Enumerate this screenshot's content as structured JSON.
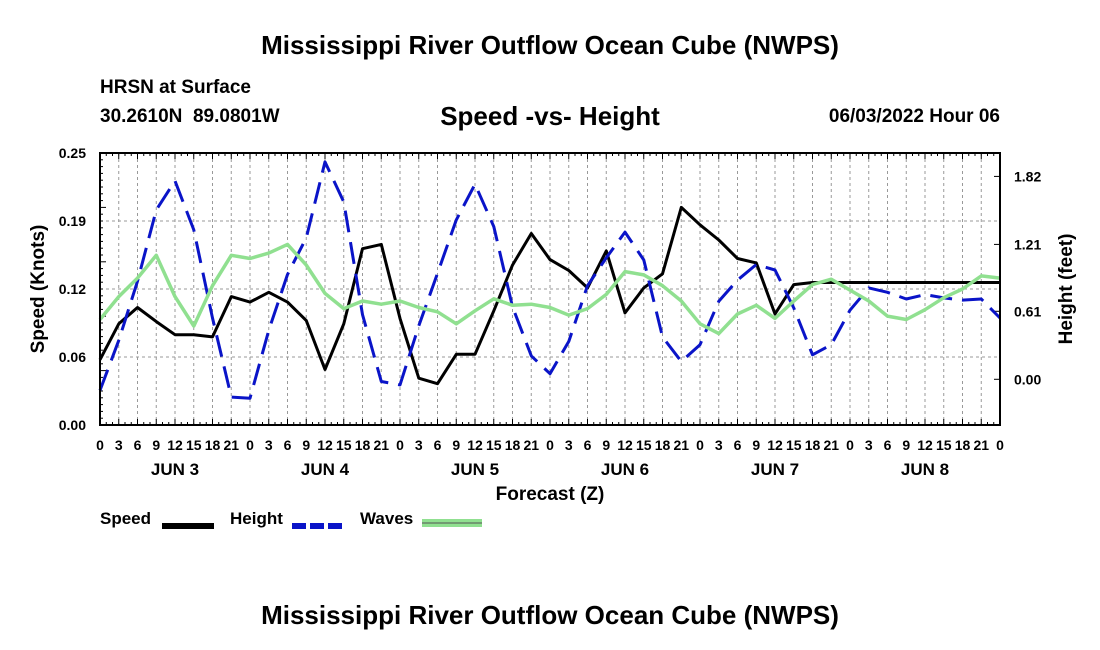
{
  "page": {
    "title": "Mississippi River Outflow Ocean Cube (NWPS)",
    "footer_title": "Mississippi River Outflow Ocean Cube (NWPS)",
    "station": "HRSN at Surface",
    "coords": "30.2610N  89.0801W",
    "subtitle": "Speed -vs- Height",
    "datetime": "06/03/2022 Hour 06"
  },
  "legend": [
    {
      "label": "Speed",
      "color": "#000000",
      "style": "solid"
    },
    {
      "label": "Height",
      "color": "#0a14c8",
      "style": "dashed"
    },
    {
      "label": "Waves",
      "color": "#90e090",
      "style": "solid"
    }
  ],
  "chart_data": {
    "type": "line",
    "title": "Speed -vs- Height",
    "xlabel": "Forecast (Z)",
    "ylabel": "Speed (Knots)",
    "y2label": "Height (feet)",
    "xlim": [
      0,
      144
    ],
    "ylim": [
      0,
      0.25
    ],
    "y2lim": [
      -0.41,
      2.03
    ],
    "yticks": [
      "0.00",
      "0.06",
      "0.12",
      "0.19",
      "0.25"
    ],
    "ytick_values": [
      0,
      0.0625,
      0.125,
      0.1875,
      0.25
    ],
    "y2ticks": [
      "0.00",
      "0.61",
      "1.21",
      "1.82"
    ],
    "y2tick_values": [
      0,
      0.61,
      1.21,
      1.82
    ],
    "xtick_hours": [
      0,
      3,
      6,
      9,
      12,
      15,
      18,
      21,
      24,
      27,
      30,
      33,
      36,
      39,
      42,
      45,
      48,
      51,
      54,
      57,
      60,
      63,
      66,
      69,
      72,
      75,
      78,
      81,
      84,
      87,
      90,
      93,
      96,
      99,
      102,
      105,
      108,
      111,
      114,
      117,
      120,
      123,
      126,
      129,
      132,
      135,
      138,
      141,
      144
    ],
    "xtick_labels": [
      "0",
      "3",
      "6",
      "9",
      "12",
      "15",
      "18",
      "21",
      "0",
      "3",
      "6",
      "9",
      "12",
      "15",
      "18",
      "21",
      "0",
      "3",
      "6",
      "9",
      "12",
      "15",
      "18",
      "21",
      "0",
      "3",
      "6",
      "9",
      "12",
      "15",
      "18",
      "21",
      "0",
      "3",
      "6",
      "9",
      "12",
      "15",
      "18",
      "21",
      "0",
      "3",
      "6",
      "9",
      "12",
      "15",
      "18",
      "21",
      "0"
    ],
    "day_labels": [
      {
        "label": "JUN 3",
        "hour": 12
      },
      {
        "label": "JUN 4",
        "hour": 36
      },
      {
        "label": "JUN 5",
        "hour": 60
      },
      {
        "label": "JUN 6",
        "hour": 84
      },
      {
        "label": "JUN 7",
        "hour": 108
      },
      {
        "label": "JUN 8",
        "hour": 132
      }
    ],
    "series": [
      {
        "name": "Speed",
        "axis": "left",
        "color": "#000000",
        "dash": "",
        "x": [
          0,
          3,
          6,
          9,
          12,
          15,
          18,
          21,
          24,
          27,
          30,
          33,
          36,
          39,
          42,
          45,
          48,
          51,
          54,
          57,
          60,
          63,
          66,
          69,
          72,
          75,
          78,
          81,
          84,
          87,
          90,
          93,
          96,
          99,
          102,
          105,
          108,
          111,
          114,
          117,
          120,
          123,
          126,
          129,
          132,
          135,
          138,
          141,
          144
        ],
        "y": [
          0.06,
          0.093,
          0.108,
          0.095,
          0.083,
          0.083,
          0.081,
          0.118,
          0.113,
          0.122,
          0.113,
          0.096,
          0.051,
          0.093,
          0.162,
          0.166,
          0.098,
          0.043,
          0.038,
          0.065,
          0.065,
          0.105,
          0.147,
          0.176,
          0.152,
          0.142,
          0.126,
          0.16,
          0.103,
          0.126,
          0.139,
          0.2,
          0.184,
          0.17,
          0.153,
          0.149,
          0.102,
          0.129,
          0.131,
          0.131,
          0.131,
          0.131,
          0.131,
          0.131,
          0.131,
          0.131,
          0.131,
          0.131,
          0.131
        ]
      },
      {
        "name": "Height",
        "axis": "right",
        "color": "#0a14c8",
        "dash": "22 10",
        "x": [
          0,
          3,
          6,
          9,
          12,
          15,
          18,
          21,
          24,
          27,
          30,
          33,
          36,
          39,
          42,
          45,
          48,
          51,
          54,
          57,
          60,
          63,
          66,
          69,
          72,
          75,
          78,
          81,
          84,
          87,
          90,
          93,
          96,
          99,
          102,
          105,
          108,
          111,
          114,
          117,
          120,
          123,
          126,
          129,
          132,
          135,
          138,
          141,
          144
        ],
        "y": [
          -0.1,
          0.35,
          0.88,
          1.52,
          1.78,
          1.34,
          0.55,
          -0.16,
          -0.17,
          0.44,
          0.94,
          1.27,
          1.95,
          1.59,
          0.58,
          -0.02,
          -0.05,
          0.48,
          0.95,
          1.43,
          1.75,
          1.37,
          0.65,
          0.21,
          0.05,
          0.34,
          0.84,
          1.09,
          1.32,
          1.07,
          0.38,
          0.16,
          0.31,
          0.7,
          0.89,
          1.03,
          0.98,
          0.64,
          0.22,
          0.31,
          0.62,
          0.82,
          0.78,
          0.72,
          0.76,
          0.73,
          0.71,
          0.72,
          0.55
        ]
      },
      {
        "name": "Waves",
        "axis": "left",
        "color": "#90e090",
        "dash": "",
        "x": [
          0,
          3,
          6,
          9,
          12,
          15,
          18,
          21,
          24,
          27,
          30,
          33,
          36,
          39,
          42,
          45,
          48,
          51,
          54,
          57,
          60,
          63,
          66,
          69,
          72,
          75,
          78,
          81,
          84,
          87,
          90,
          93,
          96,
          99,
          102,
          105,
          108,
          111,
          114,
          117,
          120,
          123,
          126,
          129,
          132,
          135,
          138,
          141,
          144
        ],
        "y": [
          0.097,
          0.118,
          0.135,
          0.156,
          0.118,
          0.091,
          0.128,
          0.156,
          0.153,
          0.158,
          0.166,
          0.147,
          0.121,
          0.107,
          0.114,
          0.111,
          0.114,
          0.108,
          0.104,
          0.093,
          0.105,
          0.116,
          0.11,
          0.111,
          0.108,
          0.101,
          0.107,
          0.12,
          0.141,
          0.138,
          0.128,
          0.114,
          0.093,
          0.084,
          0.102,
          0.11,
          0.098,
          0.114,
          0.129,
          0.134,
          0.124,
          0.114,
          0.1,
          0.097,
          0.106,
          0.117,
          0.125,
          0.137,
          0.135
        ]
      }
    ]
  }
}
